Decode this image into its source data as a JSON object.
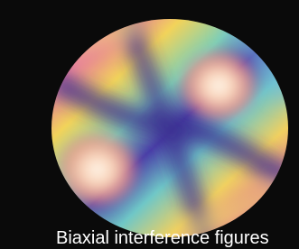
{
  "caption": "Biaxial interference figures"
}
